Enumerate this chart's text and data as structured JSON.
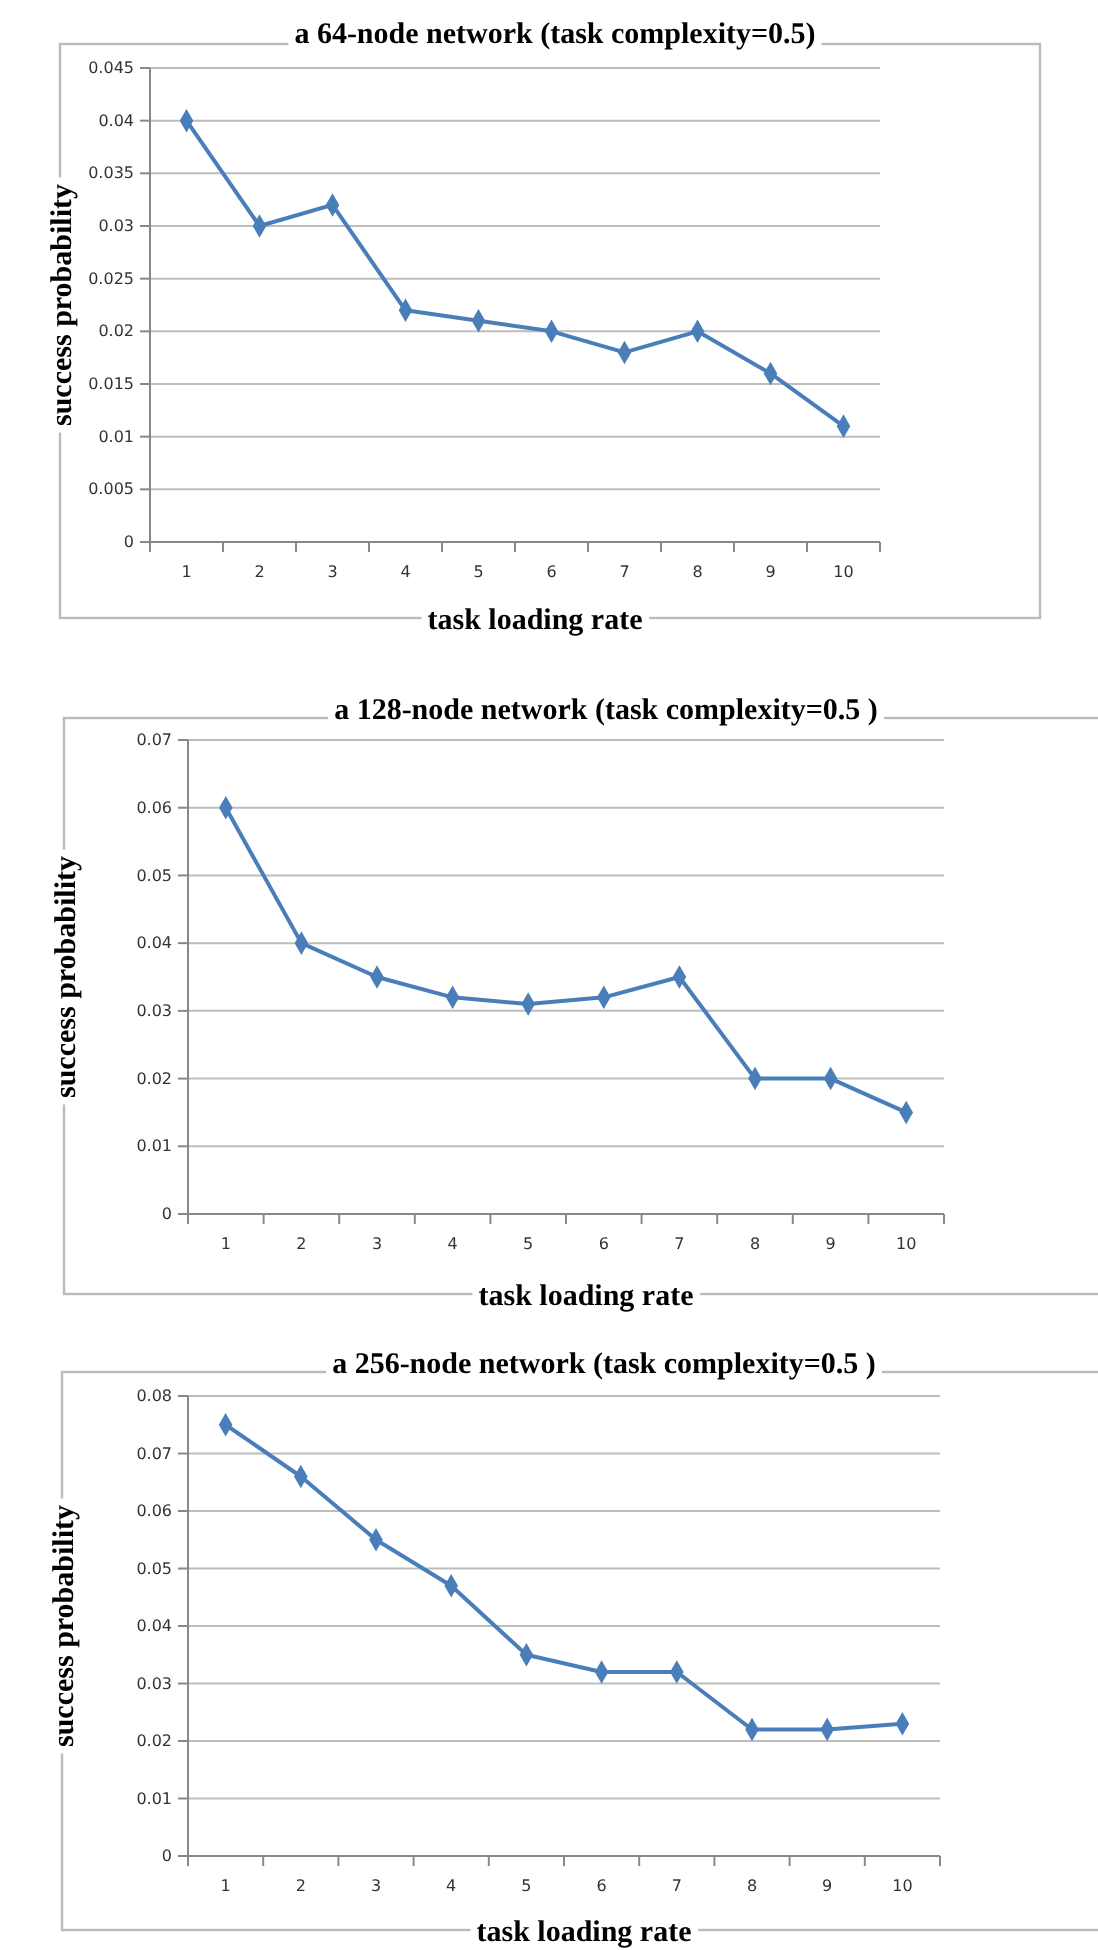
{
  "chart_data": [
    {
      "type": "line",
      "title": "a 64-node network (task complexity=0.5)",
      "xlabel": "task loading rate",
      "ylabel": "success probability",
      "categories": [
        "1",
        "2",
        "3",
        "4",
        "5",
        "6",
        "7",
        "8",
        "9",
        "10"
      ],
      "series": [
        {
          "color": "#4a7ebb",
          "values": [
            0.04,
            0.03,
            0.032,
            0.022,
            0.021,
            0.02,
            0.018,
            0.02,
            0.016,
            0.011
          ]
        }
      ],
      "ylim": [
        0,
        0.045
      ],
      "yticks": [
        0,
        0.005,
        0.01,
        0.015,
        0.02,
        0.025,
        0.03,
        0.035,
        0.04,
        0.045
      ],
      "grid": "y",
      "marker": "diamond",
      "line_style": "solid"
    },
    {
      "type": "line",
      "title": "a 128-node network (task complexity=0.5 )",
      "xlabel": "task loading rate",
      "ylabel": "success probability",
      "categories": [
        "1",
        "2",
        "3",
        "4",
        "5",
        "6",
        "7",
        "8",
        "9",
        "10"
      ],
      "series": [
        {
          "color": "#4a7ebb",
          "values": [
            0.06,
            0.04,
            0.035,
            0.032,
            0.031,
            0.032,
            0.035,
            0.02,
            0.02,
            0.015
          ]
        }
      ],
      "ylim": [
        0,
        0.07
      ],
      "yticks": [
        0,
        0.01,
        0.02,
        0.03,
        0.04,
        0.05,
        0.06,
        0.07
      ],
      "grid": "y",
      "marker": "diamond",
      "line_style": "solid"
    },
    {
      "type": "line",
      "title": "a 256-node network (task complexity=0.5 )",
      "xlabel": "task loading rate",
      "ylabel": "success probability",
      "categories": [
        "1",
        "2",
        "3",
        "4",
        "5",
        "6",
        "7",
        "8",
        "9",
        "10"
      ],
      "series": [
        {
          "color": "#4a7ebb",
          "values": [
            0.075,
            0.066,
            0.055,
            0.047,
            0.035,
            0.032,
            0.032,
            0.022,
            0.022,
            0.023
          ]
        }
      ],
      "ylim": [
        0,
        0.08
      ],
      "yticks": [
        0,
        0.01,
        0.02,
        0.03,
        0.04,
        0.05,
        0.06,
        0.07,
        0.08
      ],
      "grid": "y",
      "marker": "diamond",
      "line_style": "solid"
    }
  ]
}
